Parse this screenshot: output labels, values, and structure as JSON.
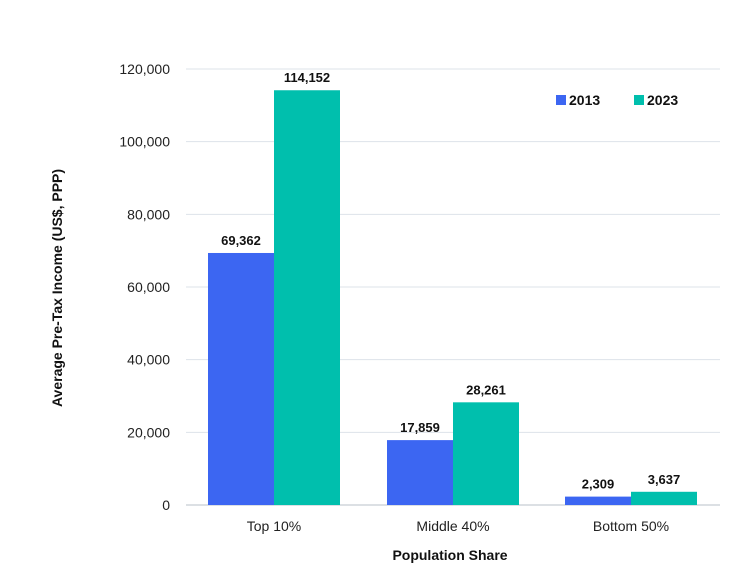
{
  "chart_data": {
    "type": "bar",
    "title": "",
    "xlabel": "Population Share",
    "ylabel": "Average Pre-Tax Income (US$, PPP)",
    "categories": [
      "Top 10%",
      "Middle 40%",
      "Bottom 50%"
    ],
    "series": [
      {
        "name": "2013",
        "color": "#3c66f2",
        "values": [
          69362,
          17859,
          2309
        ],
        "labels": [
          "69,362",
          "17,859",
          "2,309"
        ]
      },
      {
        "name": "2023",
        "color": "#00bfad",
        "values": [
          114152,
          28261,
          3637
        ],
        "labels": [
          "114,152",
          "28,261",
          "3,637"
        ]
      }
    ],
    "ylim": [
      0,
      120000
    ],
    "yticks": [
      0,
      20000,
      40000,
      60000,
      80000,
      100000,
      120000
    ],
    "ytick_labels": [
      "0",
      "20,000",
      "40,000",
      "60,000",
      "80,000",
      "100,000",
      "120,000"
    ],
    "grid": true,
    "legend_position": "top-right"
  }
}
